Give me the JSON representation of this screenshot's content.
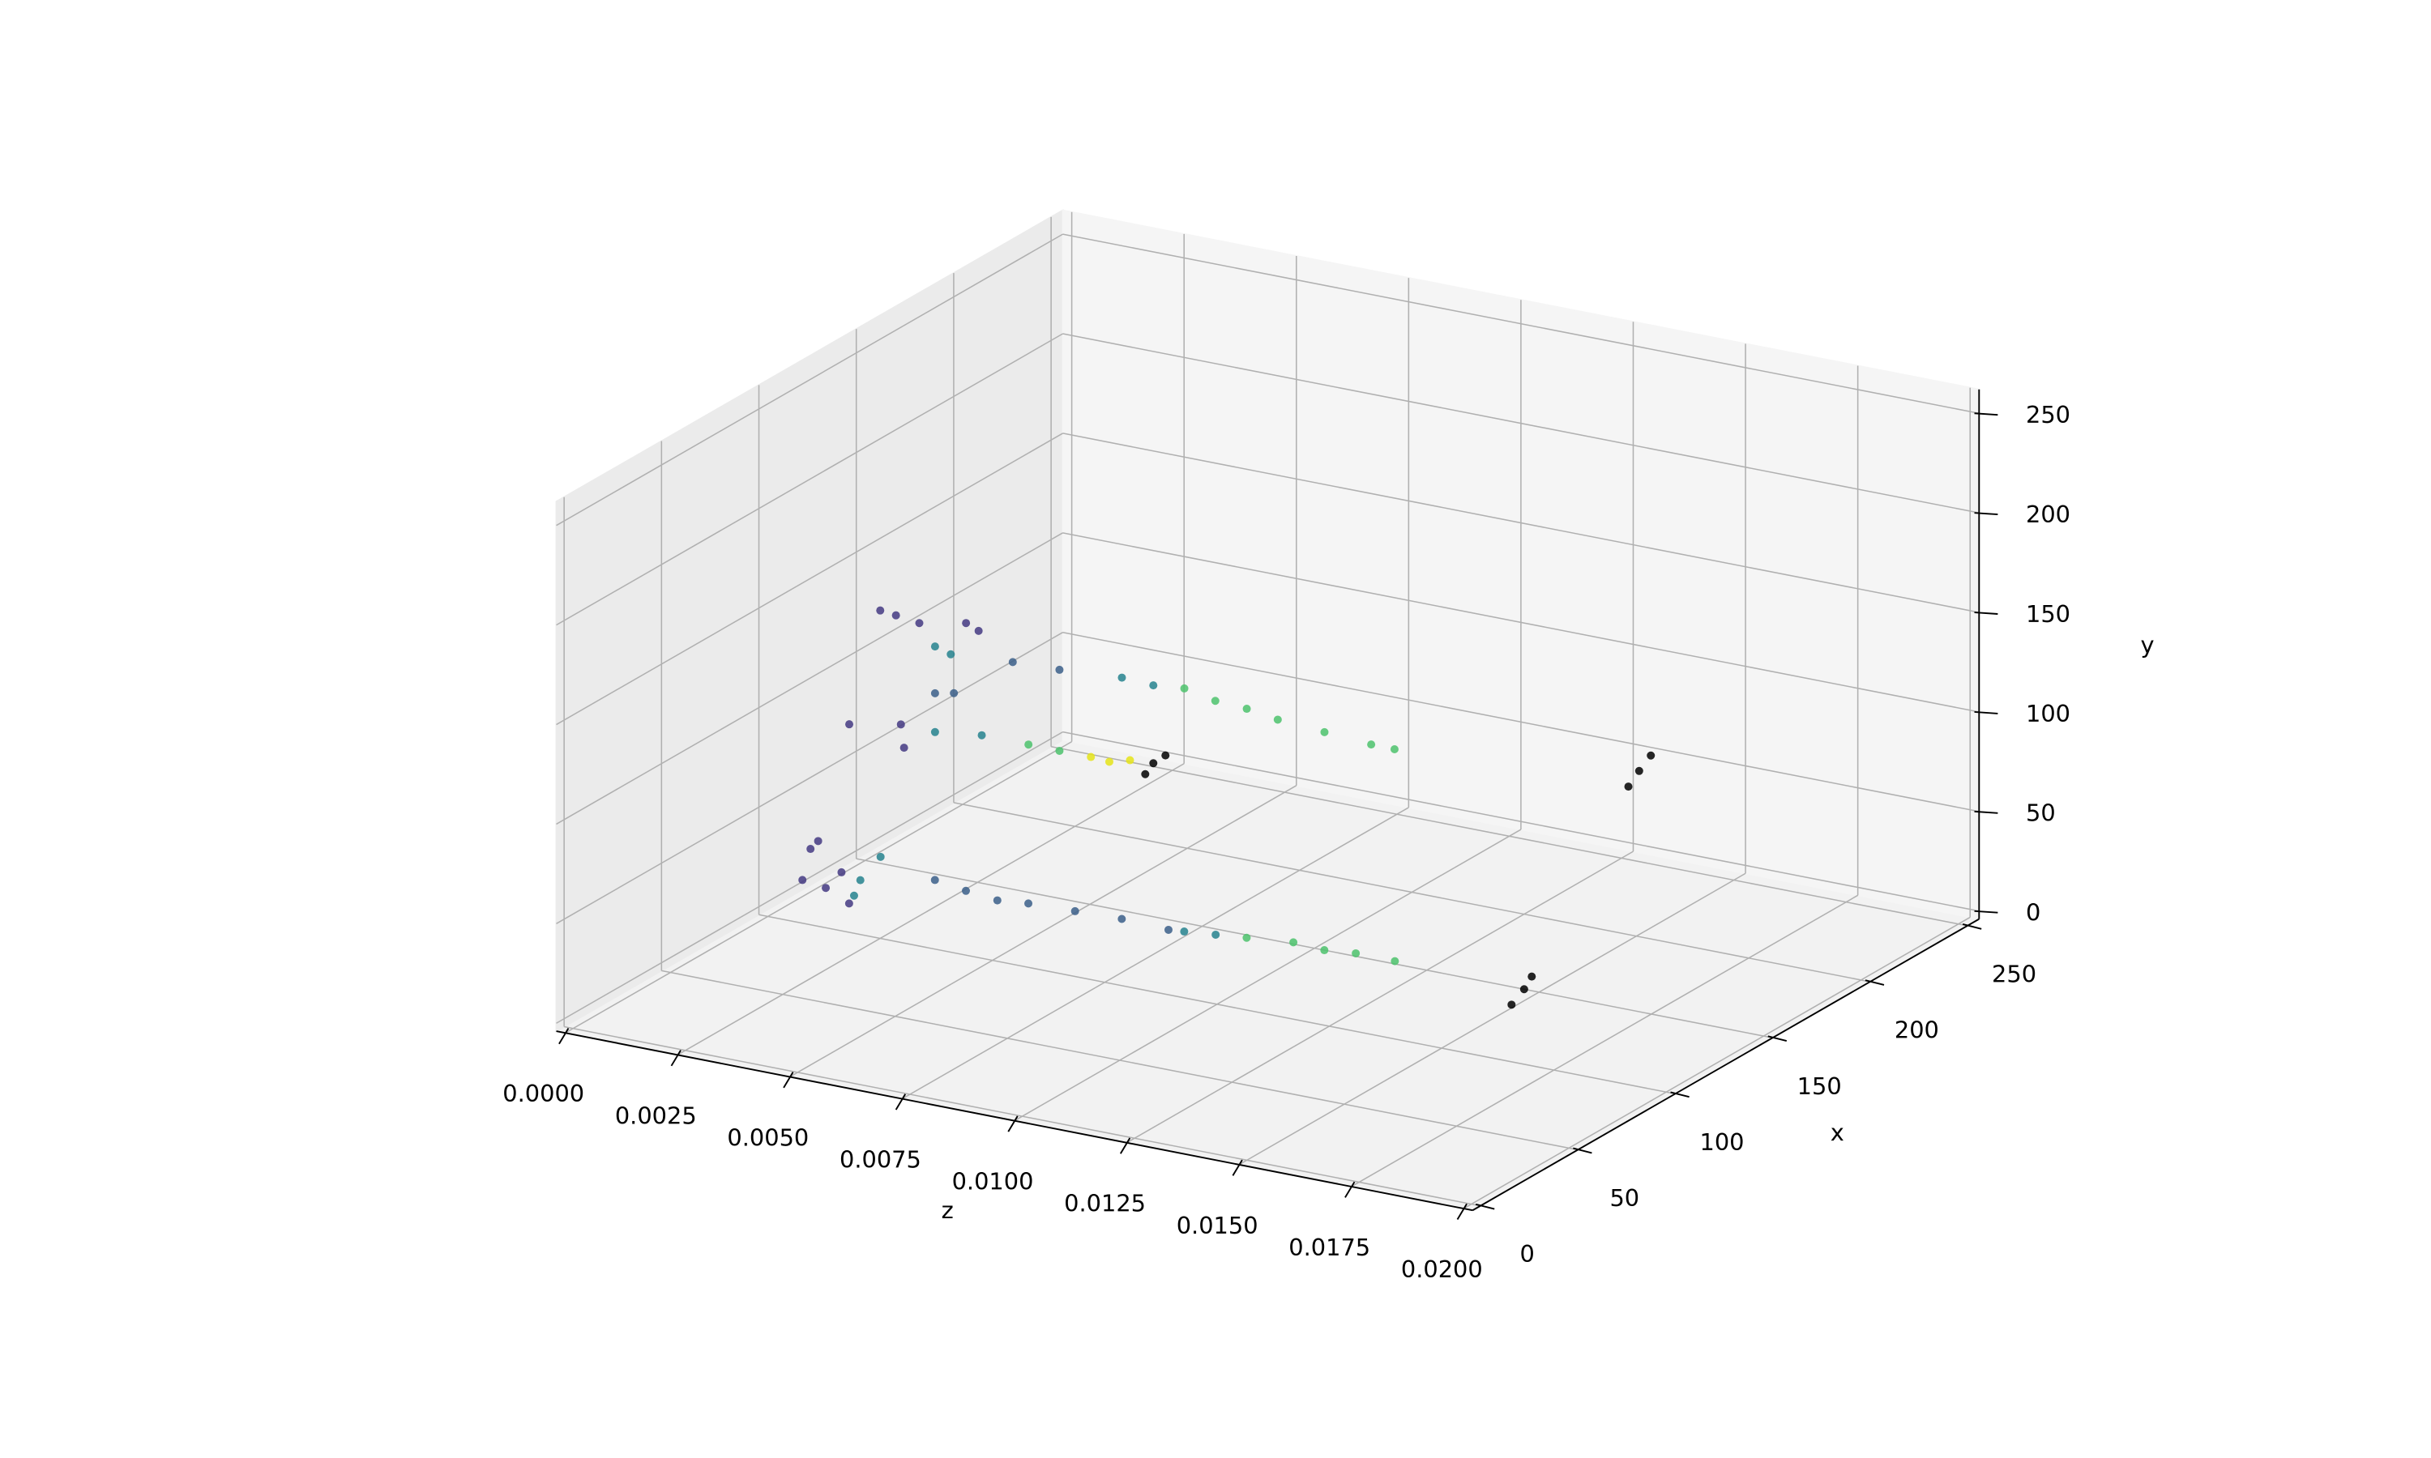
{
  "chart_data": {
    "type": "scatter3d",
    "xlabel": "x",
    "ylabel": "y",
    "zlabel": "z",
    "zlim": [
      -0.0002,
      0.0202
    ],
    "xlim": [
      -4,
      256
    ],
    "ylim": [
      -4,
      262
    ],
    "zticks": [
      {
        "value": 0,
        "label": "0.0000"
      },
      {
        "value": 0.0025,
        "label": "0.0025"
      },
      {
        "value": 0.005,
        "label": "0.0050"
      },
      {
        "value": 0.0075,
        "label": "0.0075"
      },
      {
        "value": 0.01,
        "label": "0.0100"
      },
      {
        "value": 0.0125,
        "label": "0.0125"
      },
      {
        "value": 0.015,
        "label": "0.0150"
      },
      {
        "value": 0.0175,
        "label": "0.0175"
      },
      {
        "value": 0.02,
        "label": "0.0200"
      }
    ],
    "xticks": [
      0,
      50,
      100,
      150,
      200,
      250
    ],
    "yticks": [
      0,
      50,
      100,
      150,
      200,
      250
    ],
    "grid": true,
    "series": [
      {
        "color": "#443a83",
        "z": [
          0.00081,
          0.00116,
          0.00168,
          0.00272,
          0.003,
          0.00012,
          0.00127,
          0.00134,
          0.00264,
          0.00281,
          0.00246,
          0.00298,
          0.0035,
          0.00333
        ],
        "x": [
          139,
          139,
          139,
          139,
          139,
          139,
          139,
          139,
          61,
          61,
          61,
          61,
          61,
          61
        ],
        "y": [
          131.3,
          130.4,
          128.8,
          133.4,
          130.7,
          71.1,
          76.1,
          64.7,
          63.5,
          68.2,
          47.1,
          45.4,
          39.9,
          54.8
        ]
      },
      {
        "color": "#3b5f8a",
        "z": [
          0.00203,
          0.00245,
          0.00376,
          0.0048,
          0.00541,
          0.0061,
          0.0068,
          0.00749,
          0.00853,
          0.00957,
          0.01061
        ],
        "x": [
          139,
          139,
          139,
          139,
          61,
          61,
          61,
          61,
          61,
          61,
          61
        ],
        "y": [
          95.1,
          97.0,
          118.4,
          119.1,
          60.1,
          57.7,
          56.0,
          57.5,
          58.2,
          58.9,
          58.0
        ]
      },
      {
        "color": "#26828e",
        "z": [
          0.00203,
          0.00238,
          0.00619,
          0.00689,
          0.00203,
          0.00307,
          0.00361,
          0.00375,
          0.0042,
          0.01096,
          0.01166
        ],
        "x": [
          139,
          139,
          139,
          139,
          139,
          139,
          61,
          61,
          61,
          61,
          61
        ],
        "y": [
          118.6,
          116.2,
          121.3,
          120.5,
          75.6,
          78.6,
          44.3,
          52.7,
          66.4,
          58.7,
          60.2
        ]
      },
      {
        "color": "#4cc26c",
        "z": [
          0.00758,
          0.00827,
          0.00897,
          0.00966,
          0.0107,
          0.01174,
          0.01226,
          0.00411,
          0.0048,
          0.01235,
          0.01339,
          0.01408,
          0.01478,
          0.01565
        ],
        "x": [
          139,
          139,
          139,
          139,
          139,
          139,
          139,
          139,
          139,
          61,
          61,
          61,
          61,
          61
        ],
        "y": [
          122.0,
          118.8,
          117.9,
          115.5,
          113.8,
          112.2,
          112.1,
          78.5,
          78.4,
          61.7,
          64.0,
          63.1,
          64.6,
          64.5
        ]
      },
      {
        "color": "#e5e419",
        "z": [
          0.0055,
          0.00591,
          0.00637
        ],
        "x": [
          139,
          139,
          139
        ],
        "y": [
          78.4,
          77.8,
          80.6
        ]
      },
      {
        "color": "#000000",
        "z": [
          0.00689,
          0.00671,
          0.00716,
          0.01376,
          0.01352,
          0.01402,
          0.0174,
          0.01712,
          0.01757
        ],
        "x": [
          139,
          139,
          139,
          230,
          230,
          230,
          87,
          87,
          87
        ],
        "y": [
          81.4,
          75.1,
          86.5,
          56.6,
          47.7,
          65.5,
          43.5,
          34.5,
          50.6
        ]
      }
    ]
  }
}
